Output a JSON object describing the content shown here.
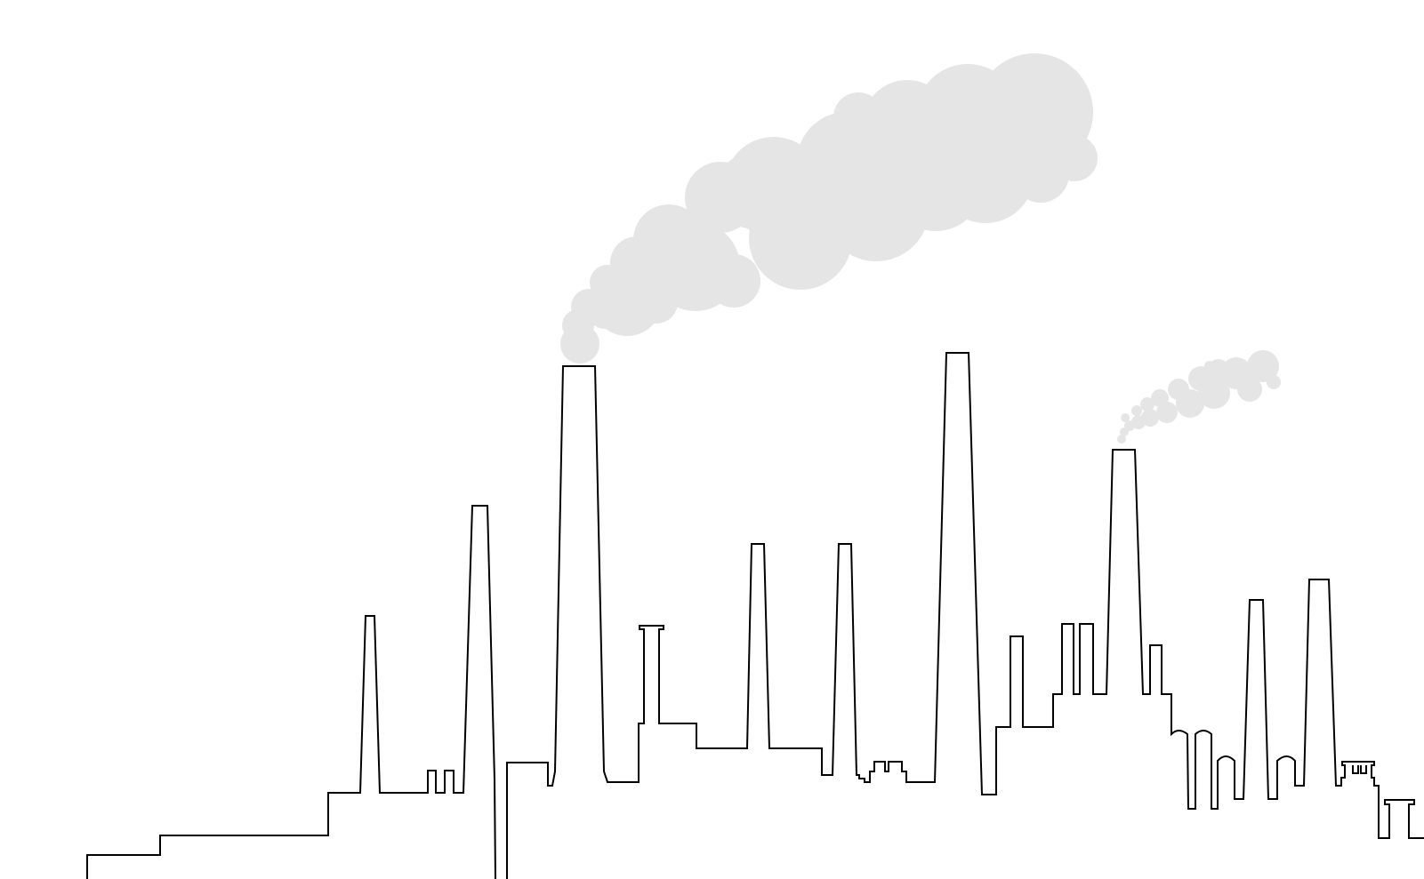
{
  "scene": {
    "subject": "factory-skyline-line-art",
    "stroke_color": "#000000",
    "smoke_color": "#e5e5e5",
    "background_color": "#ffffff"
  }
}
